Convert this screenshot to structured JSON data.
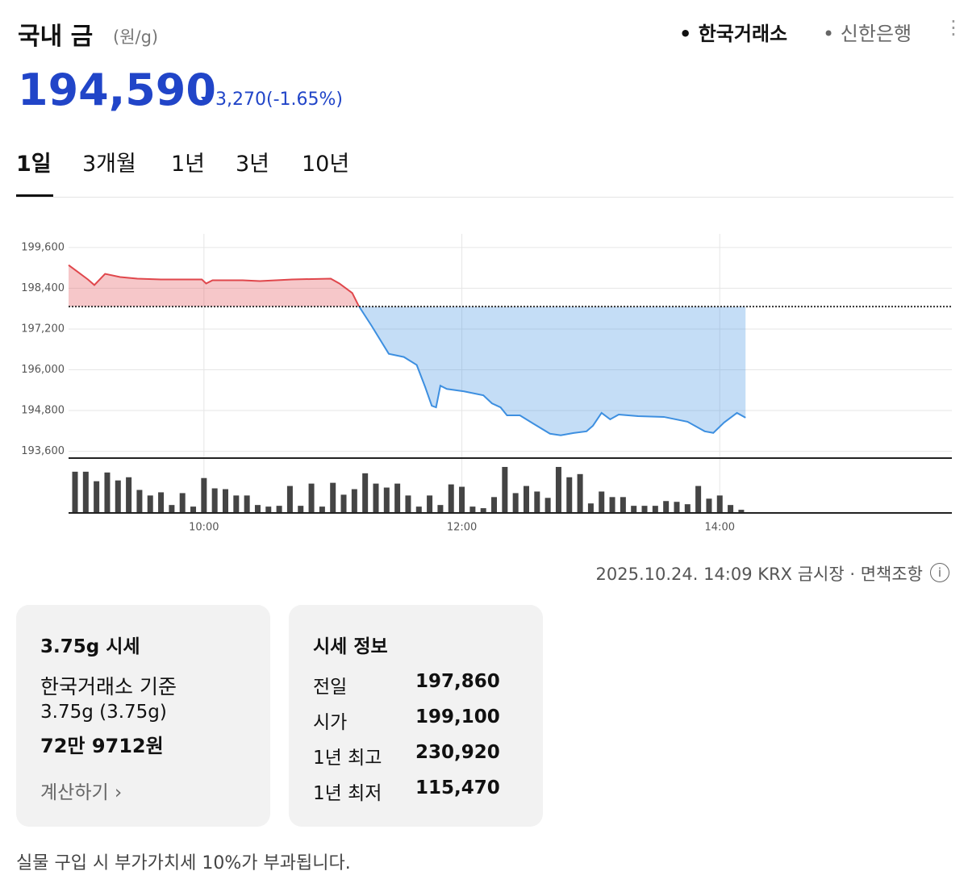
{
  "header": {
    "title": "국내 금",
    "unit": "(원/g)",
    "sources": [
      "한국거래소",
      "신한은행"
    ],
    "price": "194,590",
    "change": "3,270",
    "change_pct": "(-1.65%)"
  },
  "tabs": [
    "1일",
    "3개월",
    "1년",
    "3년",
    "10년"
  ],
  "chart_data": {
    "type": "area",
    "x": [
      537,
      541,
      546,
      549,
      554,
      561,
      569,
      580,
      599,
      601,
      604,
      618,
      626,
      641,
      659,
      663,
      669,
      672,
      678,
      686,
      693,
      699,
      703,
      706,
      708,
      710,
      713,
      721,
      730,
      734,
      738,
      741,
      747,
      753,
      761,
      766,
      772,
      778,
      781,
      785,
      789,
      793,
      802,
      814,
      825,
      833,
      837,
      842,
      848,
      852
    ],
    "series": [
      {
        "color": "#3d8fe0",
        "color_above": "#e0474c",
        "values": [
          199082,
          198894,
          198659,
          198494,
          198824,
          198730,
          198682,
          198660,
          198660,
          198540,
          198635,
          198635,
          198610,
          198660,
          198682,
          198540,
          198260,
          197880,
          197294,
          196470,
          196377,
          196140,
          195480,
          194940,
          194894,
          195530,
          195435,
          195365,
          195247,
          195012,
          194894,
          194659,
          194659,
          194424,
          194118,
          194070,
          194140,
          194188,
          194353,
          194730,
          194541,
          194682,
          194635,
          194612,
          194471,
          194188,
          194141,
          194447,
          194730,
          194590
        ]
      }
    ],
    "baseline": 197860,
    "xlim": [
      537,
      948
    ],
    "xticks": [
      {
        "value": 600,
        "label": "10:00"
      },
      {
        "value": 720,
        "label": "12:00"
      },
      {
        "value": 840,
        "label": "14:00"
      }
    ],
    "ylim": [
      193400,
      200000
    ],
    "yticks": [
      {
        "value": 193600,
        "label": "193,600"
      },
      {
        "value": 194800,
        "label": "194,800"
      },
      {
        "value": 196000,
        "label": "196,000"
      },
      {
        "value": 197200,
        "label": "197,200"
      },
      {
        "value": 198400,
        "label": "198,400"
      },
      {
        "value": 199600,
        "label": "199,600"
      }
    ],
    "grid": true,
    "volume": {
      "color": "#444444",
      "ylim": [
        0,
        60
      ],
      "x": [
        540,
        545,
        550,
        555,
        560,
        565,
        570,
        575,
        580,
        585,
        590,
        595,
        600,
        605,
        610,
        615,
        620,
        625,
        630,
        635,
        640,
        645,
        650,
        655,
        660,
        665,
        670,
        675,
        680,
        685,
        690,
        695,
        700,
        705,
        710,
        715,
        720,
        725,
        730,
        735,
        740,
        745,
        750,
        755,
        760,
        765,
        770,
        775,
        780,
        785,
        790,
        795,
        800,
        805,
        810,
        815,
        820,
        825,
        830,
        835,
        840,
        845,
        850
      ],
      "values": [
        52,
        52,
        40,
        51,
        41,
        45,
        29,
        22,
        26,
        10,
        25,
        8,
        44,
        31,
        30,
        22,
        22,
        10,
        8,
        9,
        34,
        9,
        37,
        8,
        38,
        23,
        30,
        50,
        37,
        32,
        37,
        22,
        8,
        22,
        10,
        36,
        33,
        8,
        6,
        20,
        58,
        25,
        34,
        27,
        19,
        58,
        45,
        49,
        12,
        27,
        20,
        20,
        9,
        9,
        9,
        15,
        14,
        11,
        34,
        18,
        22,
        10,
        4
      ]
    }
  },
  "meta": {
    "timestamp": "2025.10.24. 14:09",
    "market": "KRX 금시장",
    "disclaimer": "면책조항"
  },
  "card_unit": {
    "title": "3.75g 시세",
    "basis": "한국거래소 기준",
    "weight": "3.75g (3.75g)",
    "price": "72만 9712원",
    "link": "계산하기"
  },
  "card_info": {
    "title": "시세 정보",
    "rows": [
      [
        "전일",
        "197,860"
      ],
      [
        "시가",
        "199,100"
      ],
      [
        "1년 최고",
        "230,920"
      ],
      [
        "1년 최저",
        "115,470"
      ]
    ]
  },
  "note": "실물 구입 시 부가가치세 10%가 부과됩니다."
}
